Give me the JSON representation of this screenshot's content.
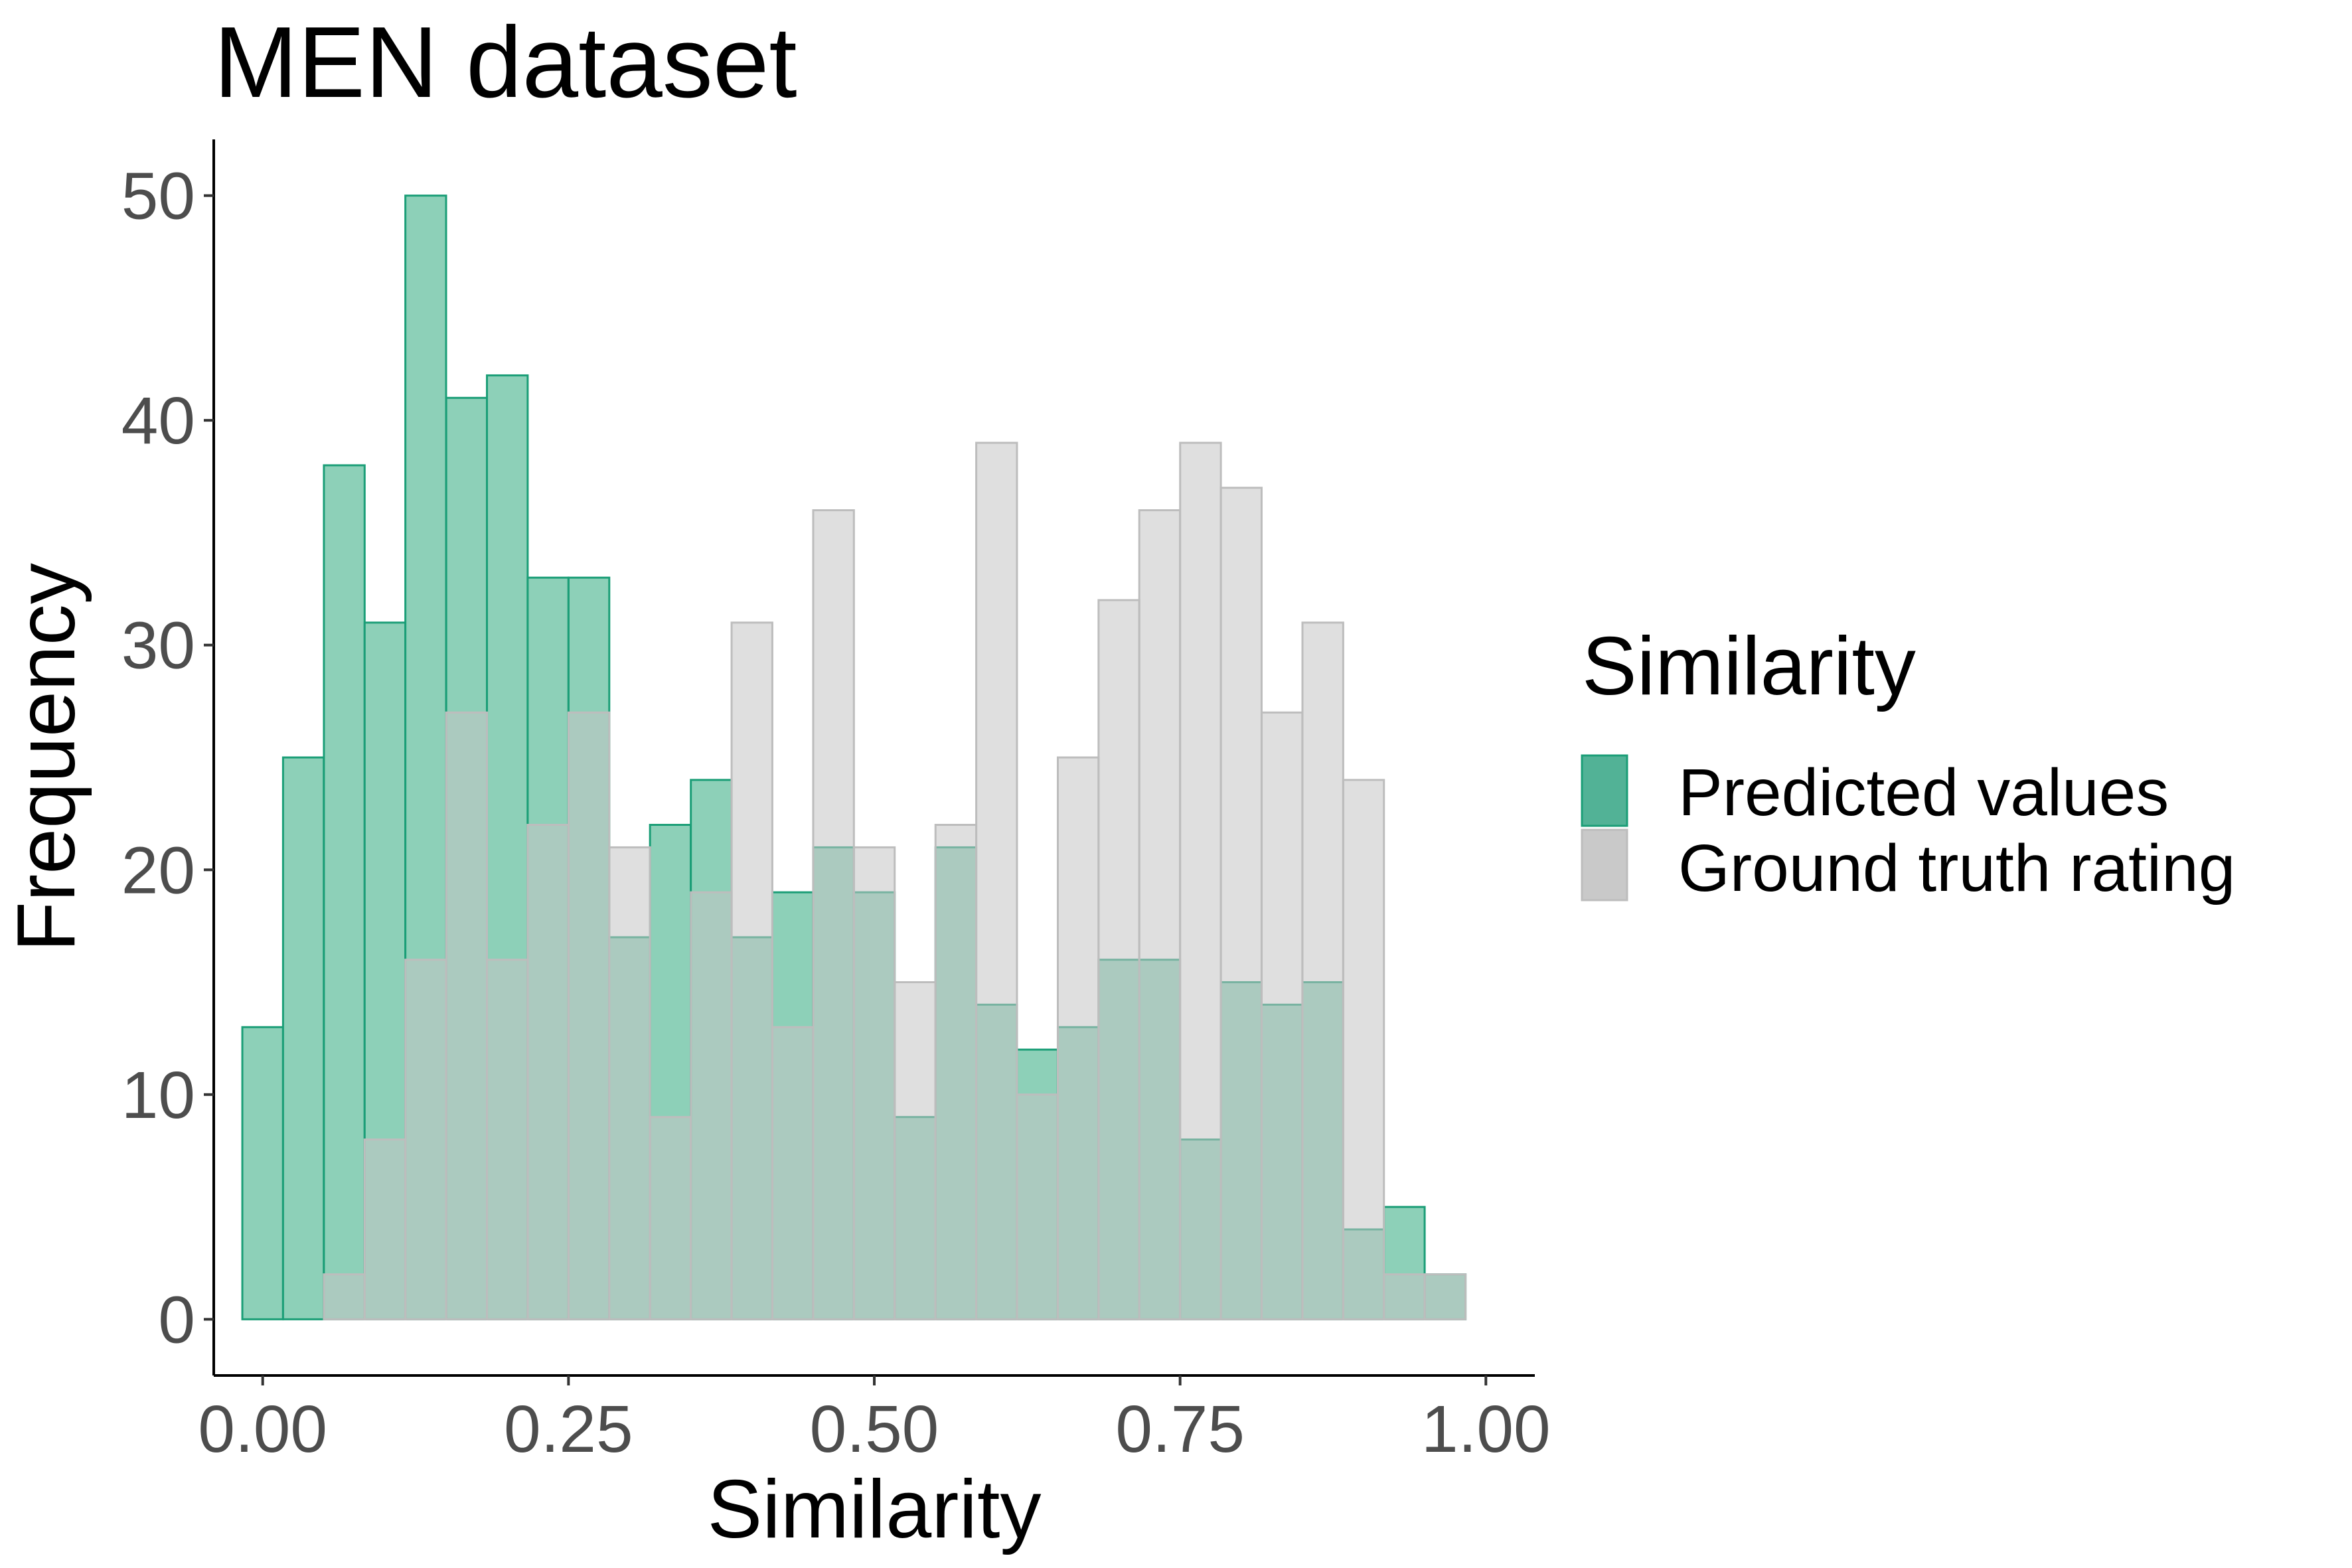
{
  "chart_data": {
    "type": "bar",
    "subtype": "overlaid-histogram",
    "title": "MEN dataset",
    "xlabel": "Similarity",
    "ylabel": "Frequency",
    "xlim": [
      -0.04,
      1.04
    ],
    "ylim": [
      -2.5,
      52.5
    ],
    "bin_width": 0.0333,
    "x_ticks": [
      {
        "value": 0.0,
        "label": "0.00"
      },
      {
        "value": 0.25,
        "label": "0.25"
      },
      {
        "value": 0.5,
        "label": "0.50"
      },
      {
        "value": 0.75,
        "label": "0.75"
      },
      {
        "value": 1.0,
        "label": "1.00"
      }
    ],
    "y_ticks": [
      {
        "value": 0,
        "label": "0"
      },
      {
        "value": 10,
        "label": "10"
      },
      {
        "value": 20,
        "label": "20"
      },
      {
        "value": 30,
        "label": "30"
      },
      {
        "value": 40,
        "label": "40"
      },
      {
        "value": 50,
        "label": "50"
      }
    ],
    "bin_centers": [
      0.0,
      0.0333,
      0.0667,
      0.1,
      0.1333,
      0.1667,
      0.2,
      0.2333,
      0.2667,
      0.3,
      0.3333,
      0.3667,
      0.4,
      0.4333,
      0.4667,
      0.5,
      0.5333,
      0.5667,
      0.6,
      0.6333,
      0.6667,
      0.7,
      0.7333,
      0.7667,
      0.8,
      0.8333,
      0.8667,
      0.9,
      0.9333,
      0.9667
    ],
    "series": [
      {
        "name": "Predicted values",
        "fill": "#8dd0b8",
        "stroke": "#1b9e77",
        "legend_fill": "#52b296",
        "values": [
          13,
          25,
          38,
          31,
          50,
          41,
          42,
          33,
          33,
          17,
          22,
          24,
          17,
          19,
          21,
          19,
          9,
          21,
          14,
          12,
          13,
          16,
          16,
          8,
          15,
          14,
          15,
          4,
          5,
          2
        ]
      },
      {
        "name": "Ground truth rating",
        "fill": "#c4c4c4",
        "fill_opacity": 0.55,
        "stroke": "#bdbdbd",
        "legend_fill": "#c9c9c9",
        "values": [
          0,
          0,
          2,
          8,
          16,
          27,
          16,
          22,
          27,
          21,
          9,
          19,
          31,
          13,
          36,
          21,
          15,
          22,
          39,
          10,
          25,
          32,
          36,
          39,
          37,
          27,
          31,
          24,
          2,
          2
        ]
      }
    ],
    "legend": {
      "title": "Similarity",
      "position": "right"
    },
    "grid": false
  }
}
